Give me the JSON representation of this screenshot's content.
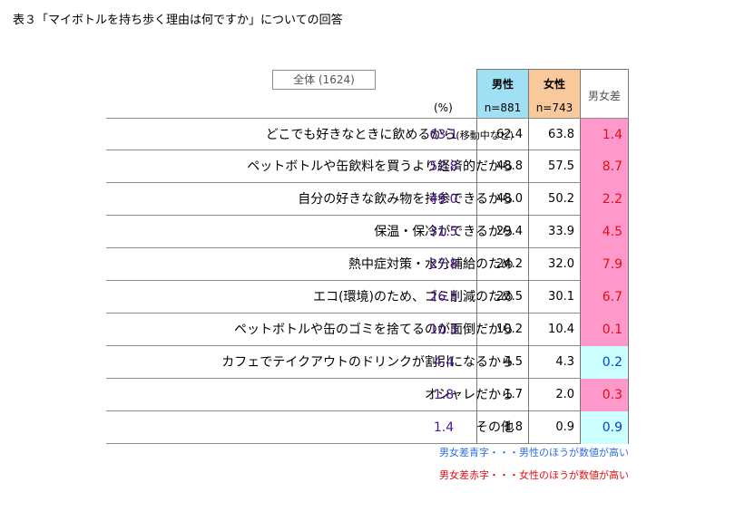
{
  "title": "表３「マイボトルを持ち歩く理由は何ですか」についての回答",
  "total_header": "全体 (1624)",
  "unit": "(%)",
  "headers": {
    "male_label": "男性",
    "male_n": "n=881",
    "female_label": "女性",
    "female_n": "n=743",
    "diff_label": "男女差"
  },
  "colors": {
    "male_header": "#9fe0f5",
    "female_header": "#f9c99b",
    "diff_female_higher": "#ff99cc",
    "diff_male_higher": "#ccffff",
    "total_text": "#4b1690",
    "diff_red_text": "#e01010",
    "diff_blue_text": "#0044cc"
  },
  "rows": [
    {
      "label": "どこでも好きなときに飲めるから",
      "sub": "(移動中など)",
      "total": "63.1",
      "male": "62.4",
      "female": "63.8",
      "diff": "1.4",
      "higher": "female"
    },
    {
      "label": "ペットボトルや缶飲料を買うより経済的だから",
      "sub": "",
      "total": "52.8",
      "male": "48.8",
      "female": "57.5",
      "diff": "8.7",
      "higher": "female"
    },
    {
      "label": "自分の好きな飲み物を持参できるから",
      "sub": "",
      "total": "49.0",
      "male": "48.0",
      "female": "50.2",
      "diff": "2.2",
      "higher": "female"
    },
    {
      "label": "保温・保冷ができるから",
      "sub": "",
      "total": "31.5",
      "male": "29.4",
      "female": "33.9",
      "diff": "4.5",
      "higher": "female"
    },
    {
      "label": "熱中症対策・水分補給のため",
      "sub": "",
      "total": "27.8",
      "male": "24.2",
      "female": "32.0",
      "diff": "7.9",
      "higher": "female"
    },
    {
      "label": "エコ(環境)のため、ゴミ削減のため",
      "sub": "",
      "total": "26.5",
      "male": "23.5",
      "female": "30.1",
      "diff": "6.7",
      "higher": "female"
    },
    {
      "label": "ペットボトルや缶のゴミを捨てるのが面倒だから",
      "sub": "",
      "total": "10.3",
      "male": "10.2",
      "female": "10.4",
      "diff": "0.1",
      "higher": "female"
    },
    {
      "label": "カフェでテイクアウトのドリンクが割引になるから",
      "sub": "",
      "total": "4.4",
      "male": "4.5",
      "female": "4.3",
      "diff": "0.2",
      "higher": "male"
    },
    {
      "label": "オシャレだから",
      "sub": "",
      "total": "1.8",
      "male": "1.7",
      "female": "2.0",
      "diff": "0.3",
      "higher": "female"
    },
    {
      "label": "その他",
      "sub": "",
      "total": "1.4",
      "male": "1.8",
      "female": "0.9",
      "diff": "0.9",
      "higher": "male"
    }
  ],
  "notes": {
    "blue": "男女差青字・・・男性のほうが数値が高い",
    "red": "男女差赤字・・・女性のほうが数値が高い"
  }
}
